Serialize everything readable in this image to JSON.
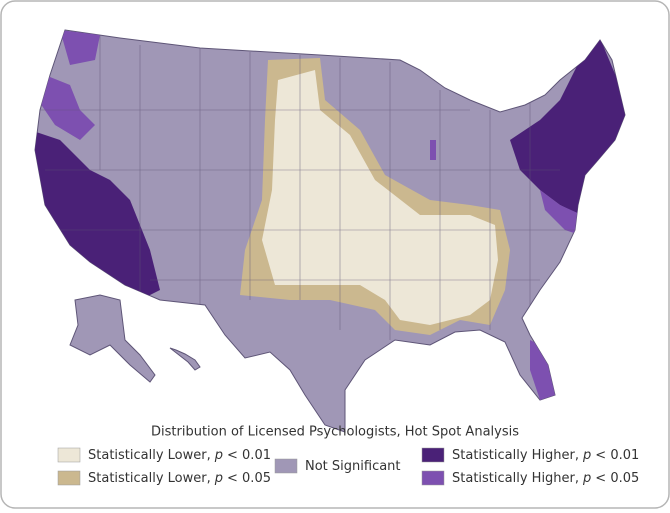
{
  "map": {
    "title": "Distribution of Licensed Psychologists, Hot Spot Analysis",
    "legend": [
      {
        "text": "Statistically Lower,",
        "symbol": "p",
        "threshold": "< 0.01",
        "color": "#ede7d7"
      },
      {
        "text": "Statistically Lower,",
        "symbol": "p",
        "threshold": "< 0.05",
        "color": "#cbb88f"
      },
      {
        "text": "Not Significant",
        "color": "#a097b6"
      },
      {
        "text": "Statistically Higher,",
        "symbol": "p",
        "threshold": "< 0.01",
        "color": "#4a2177"
      },
      {
        "text": "Statistically Higher,",
        "symbol": "p",
        "threshold": "< 0.05",
        "color": "#7d50b0"
      }
    ]
  }
}
